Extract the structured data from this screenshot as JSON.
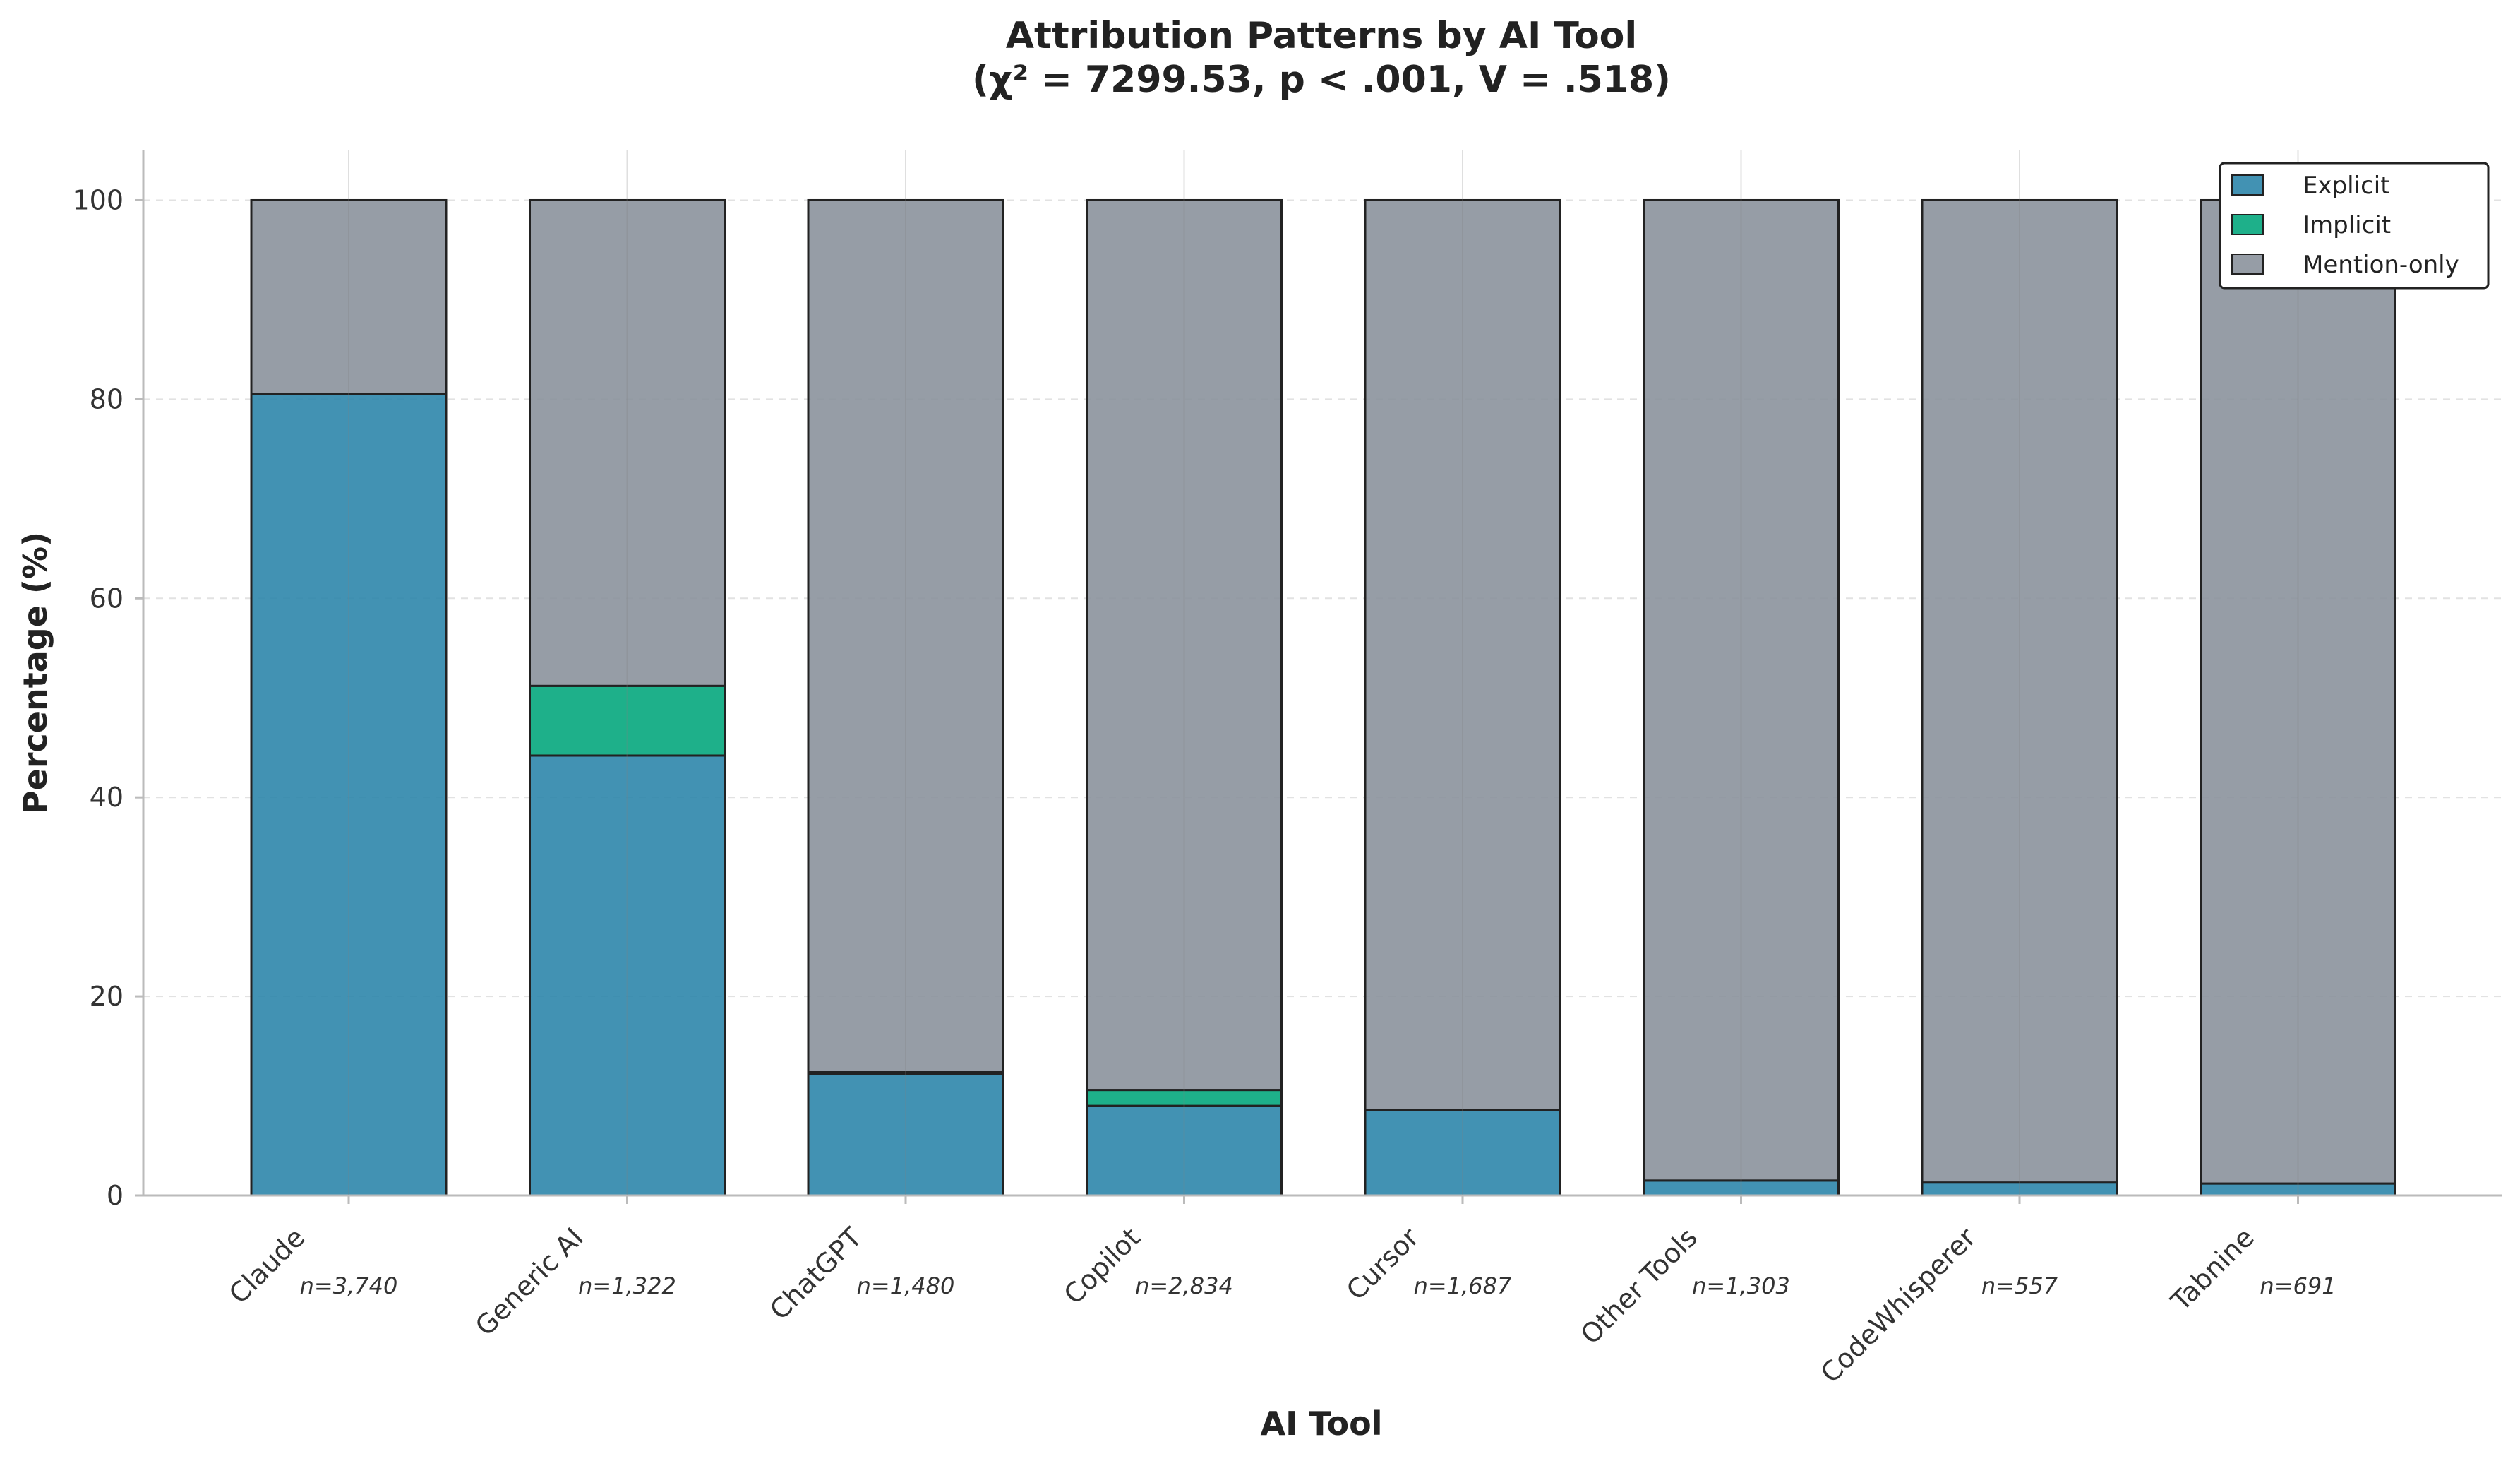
{
  "chart_data": {
    "type": "bar",
    "stacked": true,
    "title": "Attribution Patterns by AI Tool",
    "subtitle": "(χ² = 7299.53, p < .001, V = .518)",
    "xlabel": "AI Tool",
    "ylabel": "Percentage (%)",
    "ylim": [
      0,
      105
    ],
    "yticks": [
      "0",
      "20",
      "40",
      "60",
      "80",
      "100"
    ],
    "ytick_values": [
      0,
      20,
      40,
      60,
      80,
      100
    ],
    "categories": [
      "Claude",
      "Generic AI",
      "ChatGPT",
      "Copilot",
      "Cursor",
      "Other Tools",
      "CodeWhisperer",
      "Tabnine"
    ],
    "sample_sizes": [
      "n=3,740",
      "n=1,322",
      "n=1,480",
      "n=2,834",
      "n=1,687",
      "n=1,303",
      "n=557",
      "n=691"
    ],
    "series": [
      {
        "name": "Explicit",
        "color": "#2E86AB",
        "values": [
          80.5,
          44.2,
          12.2,
          9.0,
          8.6,
          1.5,
          1.3,
          1.2
        ]
      },
      {
        "name": "Implicit",
        "color": "#06A77D",
        "values": [
          0.0,
          7.0,
          0.2,
          1.6,
          0.0,
          0.0,
          0.0,
          0.0
        ]
      },
      {
        "name": "Mention-only",
        "color": "#8B929C",
        "values": [
          19.5,
          48.8,
          87.6,
          89.4,
          91.4,
          98.5,
          98.7,
          98.8
        ]
      }
    ],
    "legend_position": "top-right",
    "grid": true
  }
}
